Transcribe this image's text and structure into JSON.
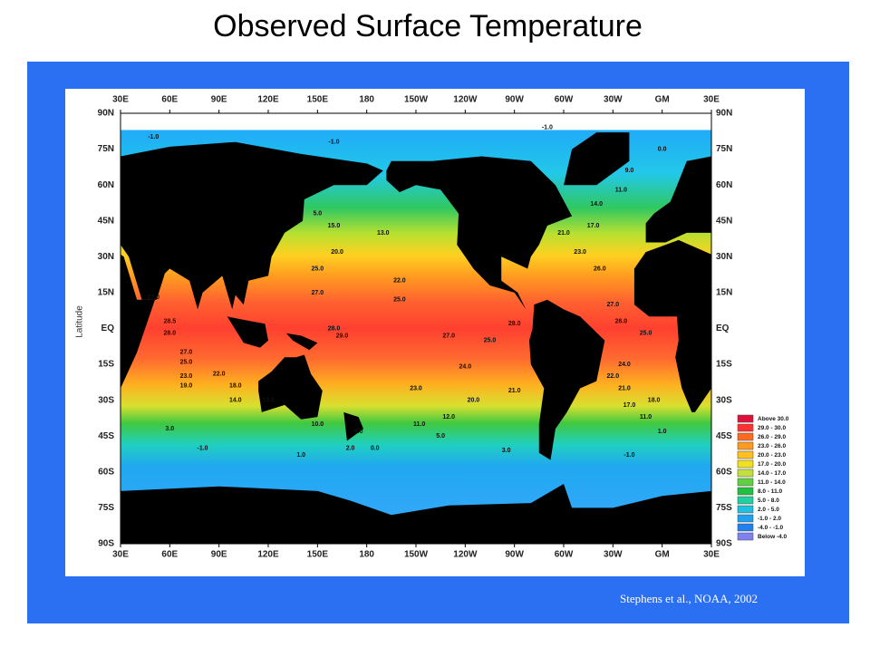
{
  "title": "Observed Surface Temperature",
  "citation": "Stephens et al., NOAA, 2002",
  "map": {
    "y_axis_label": "Latitude",
    "lon_labels": [
      "30E",
      "60E",
      "90E",
      "120E",
      "150E",
      "180",
      "150W",
      "120W",
      "90W",
      "60W",
      "30W",
      "GM",
      "30E"
    ],
    "lat_labels": [
      "90N",
      "75N",
      "60N",
      "45N",
      "30N",
      "15N",
      "EQ",
      "15S",
      "30S",
      "45S",
      "60S",
      "75S",
      "90S"
    ],
    "legend": [
      {
        "label": "Above  30.0",
        "color": "#e0103a"
      },
      {
        "label": "29.0 - 30.0",
        "color": "#ff3030"
      },
      {
        "label": "26.0 - 29.0",
        "color": "#ff6a20"
      },
      {
        "label": "23.0 - 26.0",
        "color": "#ff9a20"
      },
      {
        "label": "20.0 - 23.0",
        "color": "#ffc020"
      },
      {
        "label": "17.0 - 20.0",
        "color": "#f0e020"
      },
      {
        "label": "14.0 - 17.0",
        "color": "#c0e040"
      },
      {
        "label": "11.0 - 14.0",
        "color": "#60d040"
      },
      {
        "label": "8.0 - 11.0",
        "color": "#20c040"
      },
      {
        "label": "5.0 -  8.0",
        "color": "#20d0a0"
      },
      {
        "label": "2.0 -  5.0",
        "color": "#20c0e0"
      },
      {
        "label": "-1.0 -  2.0",
        "color": "#20a0f0"
      },
      {
        "label": "-4.0 - -1.0",
        "color": "#2080f0"
      },
      {
        "label": "Below  -4.0",
        "color": "#8080f0"
      }
    ],
    "contour_labels": [
      "25.0",
      "27.0",
      "28.0",
      "29.0",
      "28.5",
      "27.0",
      "28.0",
      "27.0",
      "25.0",
      "23.0",
      "22.0",
      "19.0",
      "18.0",
      "14.0",
      "13.0",
      "10.0",
      "9.0",
      "3.0",
      "1.0",
      "-1.0",
      "-1.0",
      "-1.0",
      "5.0",
      "13.0",
      "15.0",
      "20.0",
      "22.0",
      "25.0",
      "27.0",
      "25.0",
      "24.0",
      "21.0",
      "23.0",
      "20.0",
      "12.0",
      "11.0",
      "5.0",
      "3.0",
      "0.0",
      "2.0",
      "28.0",
      "27.0",
      "26.0",
      "25.0",
      "24.0",
      "22.0",
      "21.0",
      "17.0",
      "18.0",
      "11.0",
      "1.0",
      "-1.0",
      "26.0",
      "23.0",
      "21.0",
      "17.0",
      "14.0",
      "11.0",
      "9.0",
      "0.0",
      "-1.0"
    ]
  }
}
